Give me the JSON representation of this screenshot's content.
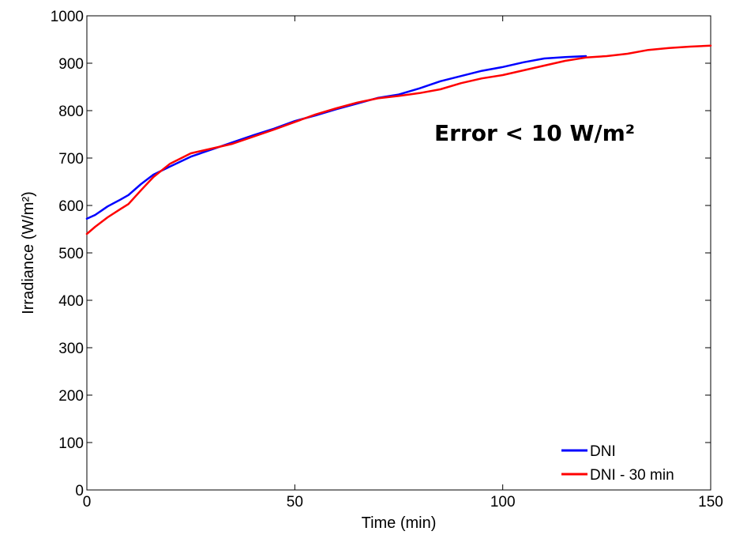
{
  "chart_data": {
    "type": "line",
    "title": "",
    "xlabel": "Time (min)",
    "ylabel": "Irradiance (W/m²)",
    "xlim": [
      0,
      150
    ],
    "ylim": [
      0,
      1000
    ],
    "xticks": [
      0,
      50,
      100,
      150
    ],
    "yticks": [
      0,
      100,
      200,
      300,
      400,
      500,
      600,
      700,
      800,
      900,
      1000
    ],
    "grid": false,
    "legend_position": "bottom-right",
    "annotation": "Error < 10 W/m²",
    "series": [
      {
        "name": "DNI",
        "color": "#0000ff",
        "x": [
          0,
          2,
          5,
          8,
          10,
          13,
          16,
          20,
          25,
          30,
          35,
          40,
          45,
          50,
          55,
          60,
          65,
          70,
          75,
          80,
          85,
          90,
          95,
          100,
          105,
          110,
          115,
          120
        ],
        "y": [
          572,
          580,
          598,
          612,
          622,
          645,
          665,
          682,
          703,
          718,
          733,
          748,
          762,
          778,
          790,
          803,
          815,
          827,
          834,
          847,
          862,
          873,
          884,
          892,
          902,
          910,
          913,
          915
        ]
      },
      {
        "name": "DNI - 30 min",
        "color": "#ff0000",
        "x": [
          0,
          2,
          5,
          8,
          10,
          13,
          16,
          20,
          25,
          30,
          35,
          40,
          45,
          50,
          55,
          60,
          65,
          70,
          75,
          80,
          85,
          90,
          95,
          100,
          105,
          110,
          115,
          120,
          125,
          130,
          135,
          140,
          145,
          150
        ],
        "y": [
          540,
          555,
          575,
          592,
          603,
          632,
          660,
          688,
          710,
          720,
          730,
          745,
          760,
          776,
          792,
          805,
          817,
          826,
          831,
          837,
          845,
          858,
          868,
          875,
          885,
          895,
          905,
          912,
          915,
          920,
          928,
          932,
          935,
          937
        ]
      }
    ]
  }
}
